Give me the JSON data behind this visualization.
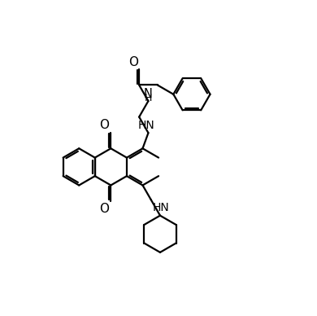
{
  "bg_color": "#ffffff",
  "line_color": "#000000",
  "line_width": 1.6,
  "figsize": [
    3.9,
    3.88
  ],
  "dpi": 100,
  "bl": 0.52,
  "xlim": [
    -0.3,
    8.2
  ],
  "ylim": [
    -0.5,
    8.3
  ]
}
